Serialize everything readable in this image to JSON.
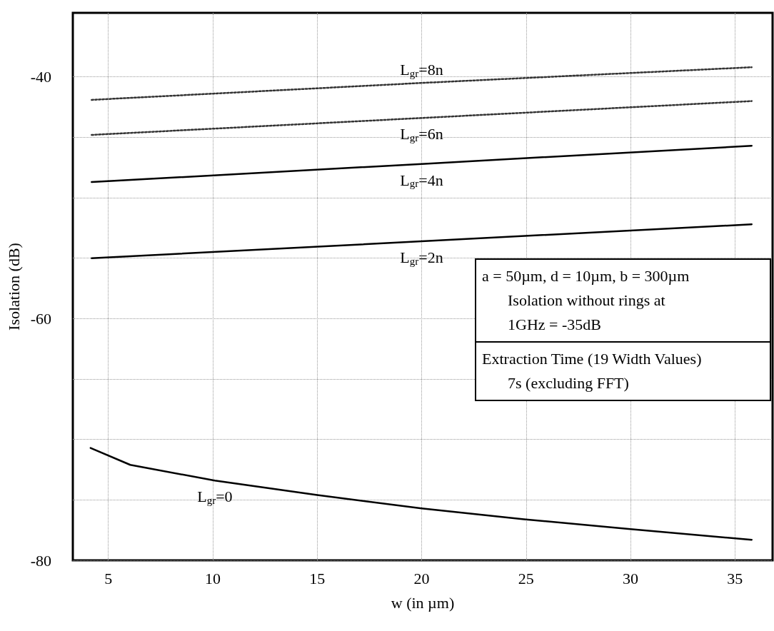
{
  "chart_data": {
    "type": "line",
    "xlabel": "w (in µm)",
    "ylabel": "Isolation (dB)",
    "xlim": [
      3.3,
      36.8
    ],
    "xticks": [
      5,
      10,
      15,
      20,
      25,
      30,
      35
    ],
    "ylim": [
      -80,
      -34.7
    ],
    "yticks": [
      -80,
      {
        "value": -75,
        "label": null
      },
      {
        "value": -70,
        "label": null
      },
      {
        "value": -65,
        "label": null
      },
      -60,
      {
        "value": -55,
        "label": null
      },
      {
        "value": -50,
        "label": null
      },
      {
        "value": -45,
        "label": null
      },
      -40
    ],
    "grid": true,
    "legend": false,
    "marker": "none",
    "series": [
      {
        "name": "L$_{gr}$=8n",
        "color": "#333333",
        "line_style": "dotted",
        "x": [
          4.2,
          20,
          35.8
        ],
        "values": [
          -41.9,
          -40.5,
          -39.2
        ]
      },
      {
        "name": "L$_{gr}$=6n",
        "color": "#333333",
        "line_style": "dotted",
        "x": [
          4.2,
          20,
          35.8
        ],
        "values": [
          -44.8,
          -43.4,
          -42.0
        ]
      },
      {
        "name": "L$_{gr}$=4n",
        "color": "#000000",
        "line_style": "solid",
        "x": [
          4.2,
          20,
          35.8
        ],
        "values": [
          -48.7,
          -47.2,
          -45.7
        ]
      },
      {
        "name": "L$_{gr}$=2n",
        "color": "#000000",
        "line_style": "solid",
        "x": [
          4.2,
          20,
          35.8
        ],
        "values": [
          -55.0,
          -53.6,
          -52.2
        ]
      },
      {
        "name": "L$_{gr}$=0",
        "color": "#000000",
        "line_style": "solid",
        "x": [
          4.15,
          6.05,
          10.1,
          15.0,
          20.0,
          24.9,
          29.9,
          35.8
        ],
        "values": [
          -70.7,
          -72.1,
          -73.4,
          -74.6,
          -75.7,
          -76.6,
          -77.4,
          -78.3
        ]
      }
    ],
    "annotations": [
      "a = 50µm, d = 10µm, b = 300µm",
      "Isolation without rings at 1GHz = -35dB",
      "Extraction Time (19 Width Values)",
      "7s (excluding FFT)"
    ]
  }
}
